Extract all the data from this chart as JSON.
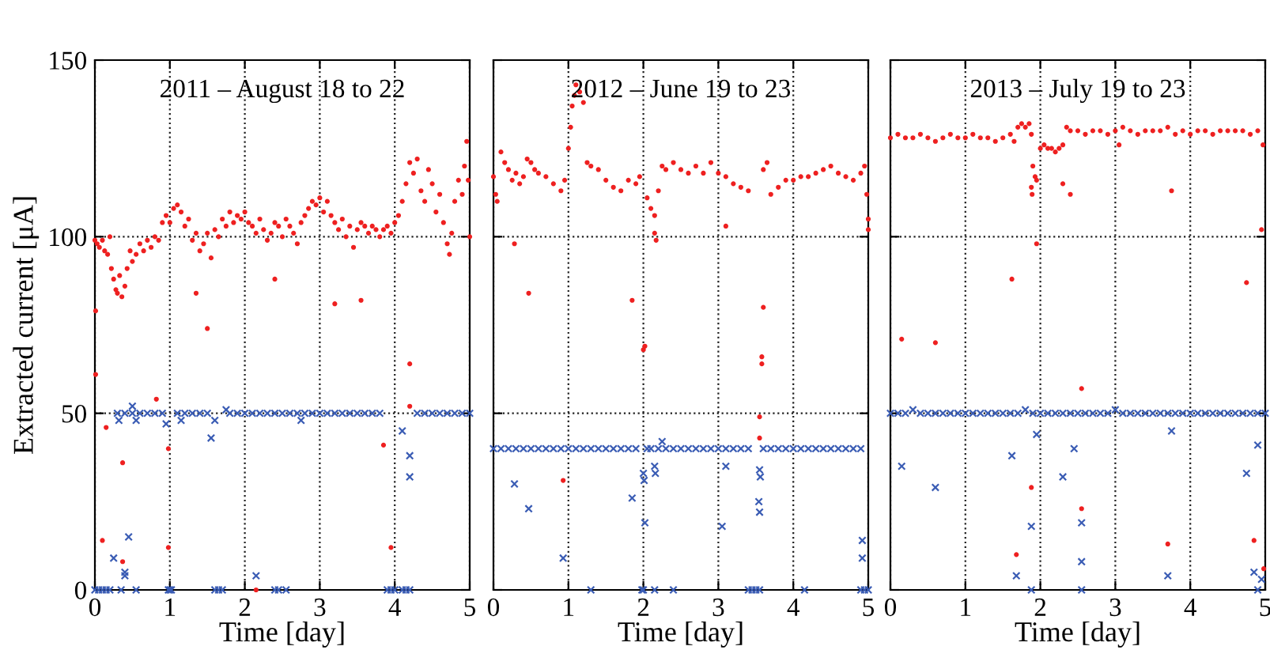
{
  "chart_data": [
    {
      "type": "scatter",
      "title": "2011 – August 18 to 22",
      "xlabel": "Time [day]",
      "ylabel": "Extracted current [μA]",
      "xlim": [
        0,
        5
      ],
      "xticks": [
        0,
        1,
        2,
        3,
        4,
        5
      ],
      "ylim": [
        0,
        150
      ],
      "yticks": [
        0,
        50,
        100,
        150
      ],
      "grid": true,
      "series": [
        {
          "color": "#ee2020",
          "marker": "circle",
          "x": [
            0.0,
            0.03,
            0.06,
            0.1,
            0.13,
            0.17,
            0.2,
            0.22,
            0.25,
            0.28,
            0.3,
            0.33,
            0.36,
            0.4,
            0.43,
            0.47,
            0.5,
            0.55,
            0.6,
            0.65,
            0.7,
            0.75,
            0.8,
            0.85,
            0.9,
            0.95,
            1.0,
            1.05,
            1.1,
            1.15,
            1.2,
            1.25,
            1.3,
            1.35,
            1.4,
            1.45,
            1.5,
            1.55,
            1.6,
            1.65,
            1.7,
            1.75,
            1.8,
            1.85,
            1.9,
            1.95,
            2.0,
            2.05,
            2.1,
            2.15,
            2.2,
            2.25,
            2.3,
            2.35,
            2.4,
            2.45,
            2.5,
            2.55,
            2.6,
            2.65,
            2.7,
            2.75,
            2.8,
            2.85,
            2.9,
            2.95,
            3.0,
            3.05,
            3.1,
            3.15,
            3.2,
            3.25,
            3.3,
            3.35,
            3.4,
            3.45,
            3.5,
            3.55,
            3.6,
            3.65,
            3.7,
            3.75,
            3.8,
            3.85,
            3.9,
            3.95,
            4.0,
            4.05,
            4.1,
            4.15,
            4.2,
            4.25,
            4.3,
            4.35,
            4.4,
            4.45,
            4.5,
            4.55,
            4.6,
            4.65,
            4.7,
            4.73,
            4.76,
            4.8,
            4.85,
            4.9,
            4.93,
            4.96,
            4.98,
            5.0,
            0.01,
            0.01,
            0.1,
            0.15,
            0.37,
            0.37,
            0.82,
            0.98,
            0.98,
            1.35,
            1.5,
            2.15,
            3.55,
            3.85,
            3.95,
            4.2,
            4.2,
            3.2,
            2.4
          ],
          "values": [
            99,
            98,
            97,
            99,
            96,
            95,
            100,
            91,
            88,
            85,
            84,
            89,
            83,
            86,
            91,
            96,
            93,
            95,
            98,
            96,
            99,
            97,
            100,
            99,
            104,
            106,
            104,
            108,
            109,
            107,
            103,
            105,
            99,
            101,
            96,
            98,
            101,
            94,
            102,
            100,
            105,
            103,
            107,
            104,
            106,
            105,
            107,
            104,
            103,
            101,
            105,
            102,
            99,
            101,
            104,
            103,
            100,
            105,
            103,
            101,
            98,
            104,
            106,
            108,
            110,
            109,
            111,
            107,
            110,
            106,
            104,
            102,
            105,
            100,
            103,
            97,
            102,
            104,
            103,
            101,
            103,
            102,
            100,
            102,
            103,
            101,
            104,
            106,
            110,
            115,
            121,
            118,
            122,
            113,
            110,
            119,
            115,
            107,
            112,
            104,
            98,
            95,
            101,
            110,
            116,
            112,
            120,
            127,
            116,
            100,
            79,
            61,
            14,
            46,
            36,
            8,
            54,
            40,
            12,
            84,
            74,
            0,
            82,
            41,
            12,
            64,
            52,
            81,
            88
          ]
        },
        {
          "color": "#3a5cb4",
          "marker": "cross",
          "x": [
            0.0,
            0.05,
            0.1,
            0.15,
            0.2,
            0.35,
            0.55,
            0.98,
            1.0,
            1.02,
            1.6,
            1.65,
            1.7,
            2.4,
            2.45,
            2.55,
            3.9,
            3.95,
            4.0,
            4.1,
            4.15,
            4.2,
            0.3,
            0.4,
            0.5,
            0.6,
            0.7,
            0.8,
            0.9,
            1.1,
            1.2,
            1.3,
            1.4,
            1.5,
            1.8,
            1.9,
            2.0,
            2.1,
            2.2,
            2.3,
            2.4,
            2.5,
            2.6,
            2.7,
            2.8,
            2.9,
            3.0,
            3.1,
            3.2,
            3.3,
            3.4,
            3.5,
            3.6,
            3.7,
            3.8,
            4.3,
            4.4,
            4.5,
            4.6,
            4.7,
            4.8,
            4.9,
            5.0,
            0.25,
            0.4,
            0.4,
            0.45,
            0.32,
            0.55,
            0.95,
            1.15,
            1.55,
            1.6,
            2.15,
            2.75,
            4.1,
            4.2,
            4.2,
            0.5,
            1.75
          ],
          "values": [
            0,
            0,
            0,
            0,
            0,
            0,
            0,
            0,
            0,
            0,
            0,
            0,
            0,
            0,
            0,
            0,
            0,
            0,
            0,
            0,
            0,
            0,
            50,
            50,
            50,
            50,
            50,
            50,
            50,
            50,
            50,
            50,
            50,
            50,
            50,
            50,
            50,
            50,
            50,
            50,
            50,
            50,
            50,
            50,
            50,
            50,
            50,
            50,
            50,
            50,
            50,
            50,
            50,
            50,
            50,
            50,
            50,
            50,
            50,
            50,
            50,
            50,
            50,
            9,
            5,
            4,
            15,
            48,
            48,
            47,
            48,
            43,
            48,
            4,
            48,
            45,
            38,
            32,
            52,
            51
          ]
        }
      ]
    },
    {
      "type": "scatter",
      "title": "2012 – June 19 to 23",
      "xlabel": "Time [day]",
      "xlim": [
        0,
        5
      ],
      "xticks": [
        0,
        1,
        2,
        3,
        4,
        5
      ],
      "ylim": [
        0,
        150
      ],
      "yticks": [
        0,
        50,
        100,
        150
      ],
      "grid": true,
      "tick_labels": "x",
      "series": [
        {
          "color": "#ee2020",
          "marker": "circle",
          "x": [
            0.0,
            0.03,
            0.05,
            0.1,
            0.15,
            0.2,
            0.25,
            0.3,
            0.35,
            0.4,
            0.45,
            0.5,
            0.55,
            0.6,
            0.7,
            0.8,
            0.9,
            0.95,
            1.0,
            1.03,
            1.05,
            1.08,
            1.1,
            1.15,
            1.2,
            1.25,
            1.3,
            1.4,
            1.5,
            1.6,
            1.7,
            1.8,
            1.9,
            1.95,
            2.05,
            2.1,
            2.15,
            2.2,
            2.25,
            2.3,
            2.4,
            2.5,
            2.6,
            2.7,
            2.8,
            2.9,
            3.0,
            3.1,
            3.2,
            3.3,
            3.4,
            3.6,
            3.65,
            3.7,
            3.8,
            3.9,
            4.0,
            4.1,
            4.2,
            4.3,
            4.4,
            4.5,
            4.6,
            4.7,
            4.8,
            4.9,
            4.95,
            4.98,
            5.0,
            5.0,
            0.28,
            0.47,
            0.93,
            1.85,
            2.0,
            2.02,
            2.15,
            2.17,
            3.1,
            3.6,
            3.58,
            3.58,
            3.55,
            3.55
          ],
          "values": [
            117,
            112,
            110,
            124,
            121,
            119,
            116,
            118,
            115,
            117,
            122,
            121,
            119,
            118,
            117,
            115,
            113,
            116,
            125,
            131,
            137,
            140,
            143,
            141,
            138,
            121,
            120,
            119,
            116,
            114,
            113,
            116,
            115,
            117,
            111,
            108,
            106,
            113,
            120,
            119,
            121,
            119,
            118,
            120,
            118,
            121,
            118,
            117,
            115,
            114,
            113,
            119,
            121,
            112,
            114,
            116,
            116,
            117,
            117,
            118,
            119,
            120,
            118,
            117,
            116,
            118,
            120,
            112,
            105,
            102,
            98,
            84,
            31,
            82,
            68,
            69,
            101,
            99,
            103,
            80,
            66,
            64,
            49,
            43
          ]
        },
        {
          "color": "#3a5cb4",
          "marker": "cross",
          "x": [
            0.0,
            0.1,
            0.2,
            0.3,
            0.4,
            0.5,
            0.6,
            0.7,
            0.8,
            0.9,
            1.0,
            1.1,
            1.2,
            1.3,
            1.4,
            1.5,
            1.6,
            1.7,
            1.8,
            1.9,
            2.05,
            2.1,
            2.2,
            2.3,
            2.4,
            2.5,
            2.6,
            2.7,
            2.8,
            2.9,
            3.0,
            3.1,
            3.2,
            3.3,
            3.4,
            3.6,
            3.7,
            3.8,
            3.9,
            4.0,
            4.1,
            4.2,
            4.3,
            4.4,
            4.5,
            4.6,
            4.7,
            4.8,
            4.9,
            1.3,
            2.0,
            1.98,
            2.15,
            2.4,
            3.4,
            3.45,
            3.5,
            3.55,
            4.15,
            4.9,
            4.95,
            5.0,
            0.28,
            0.47,
            0.93,
            1.85,
            2.0,
            2.01,
            2.02,
            2.15,
            2.16,
            2.25,
            3.1,
            3.05,
            3.55,
            3.56,
            3.54,
            3.55,
            4.92,
            4.92
          ],
          "values": [
            40,
            40,
            40,
            40,
            40,
            40,
            40,
            40,
            40,
            40,
            40,
            40,
            40,
            40,
            40,
            40,
            40,
            40,
            40,
            40,
            40,
            40,
            40,
            40,
            40,
            40,
            40,
            40,
            40,
            40,
            40,
            40,
            40,
            40,
            40,
            40,
            40,
            40,
            40,
            40,
            40,
            40,
            40,
            40,
            40,
            40,
            40,
            40,
            40,
            0,
            0,
            0,
            0,
            0,
            0,
            0,
            0,
            0,
            0,
            0,
            0,
            0,
            30,
            23,
            9,
            26,
            33,
            31,
            19,
            35,
            33,
            42,
            35,
            18,
            34,
            32,
            25,
            22,
            14,
            9
          ]
        }
      ]
    },
    {
      "type": "scatter",
      "title": "2013 – July 19 to 23",
      "xlabel": "Time [day]",
      "xlim": [
        0,
        5
      ],
      "xticks": [
        0,
        1,
        2,
        3,
        4,
        5
      ],
      "ylim": [
        0,
        150
      ],
      "yticks": [
        0,
        50,
        100,
        150
      ],
      "grid": true,
      "tick_labels": "x",
      "series": [
        {
          "color": "#ee2020",
          "marker": "circle",
          "x": [
            0.0,
            0.1,
            0.2,
            0.3,
            0.4,
            0.5,
            0.6,
            0.7,
            0.8,
            0.9,
            1.0,
            1.1,
            1.2,
            1.3,
            1.4,
            1.5,
            1.6,
            1.65,
            1.7,
            1.75,
            1.8,
            1.85,
            1.88,
            1.9,
            1.93,
            1.95,
            2.0,
            2.05,
            2.1,
            2.15,
            2.2,
            2.25,
            2.3,
            2.35,
            2.4,
            2.5,
            2.6,
            2.7,
            2.8,
            2.9,
            3.0,
            3.1,
            3.2,
            3.3,
            3.4,
            3.5,
            3.6,
            3.7,
            3.8,
            3.9,
            4.0,
            4.1,
            4.2,
            4.3,
            4.4,
            4.5,
            4.6,
            4.7,
            4.8,
            4.9,
            4.97,
            0.15,
            0.6,
            1.62,
            1.88,
            1.89,
            1.95,
            1.88,
            2.3,
            2.4,
            2.55,
            2.55,
            3.05,
            3.75,
            3.7,
            4.75,
            4.85,
            4.95,
            1.68,
            4.98
          ],
          "values": [
            128,
            129,
            128,
            128,
            129,
            128,
            127,
            128,
            129,
            128,
            128,
            129,
            128,
            128,
            127,
            128,
            129,
            127,
            131,
            132,
            131,
            132,
            129,
            120,
            117,
            116,
            125,
            126,
            125,
            125,
            124,
            125,
            126,
            131,
            130,
            130,
            129,
            130,
            130,
            129,
            130,
            131,
            130,
            129,
            130,
            130,
            130,
            131,
            129,
            130,
            129,
            130,
            130,
            129,
            130,
            130,
            130,
            130,
            129,
            130,
            126,
            71,
            70,
            88,
            114,
            112,
            98,
            29,
            115,
            112,
            57,
            23,
            126,
            113,
            13,
            87,
            14,
            102,
            10,
            6
          ]
        },
        {
          "color": "#3a5cb4",
          "marker": "cross",
          "x": [
            0.0,
            0.1,
            0.2,
            0.3,
            0.4,
            0.5,
            0.6,
            0.7,
            0.8,
            0.9,
            1.0,
            1.1,
            1.2,
            1.3,
            1.4,
            1.5,
            1.6,
            1.7,
            1.8,
            1.9,
            2.0,
            2.1,
            2.2,
            2.3,
            2.4,
            2.5,
            2.6,
            2.7,
            2.8,
            2.9,
            3.0,
            3.1,
            3.2,
            3.3,
            3.4,
            3.5,
            3.6,
            3.7,
            3.8,
            3.9,
            4.0,
            4.1,
            4.2,
            4.3,
            4.4,
            4.5,
            4.6,
            4.7,
            4.8,
            4.9,
            5.0,
            0.15,
            0.6,
            1.62,
            1.95,
            1.88,
            1.68,
            2.3,
            2.45,
            2.55,
            2.55,
            3.75,
            3.7,
            4.75,
            4.9,
            4.85,
            4.95,
            1.88,
            2.55,
            4.9
          ],
          "values": [
            50,
            50,
            50,
            51,
            50,
            50,
            50,
            50,
            50,
            50,
            50,
            50,
            50,
            50,
            50,
            50,
            50,
            50,
            51,
            50,
            50,
            50,
            50,
            50,
            50,
            50,
            50,
            50,
            50,
            50,
            51,
            50,
            50,
            50,
            50,
            50,
            50,
            50,
            50,
            50,
            50,
            50,
            50,
            50,
            50,
            50,
            50,
            50,
            50,
            50,
            50,
            35,
            29,
            38,
            44,
            18,
            4,
            32,
            40,
            19,
            8,
            45,
            4,
            33,
            41,
            5,
            3,
            0,
            0,
            0
          ]
        }
      ]
    }
  ]
}
